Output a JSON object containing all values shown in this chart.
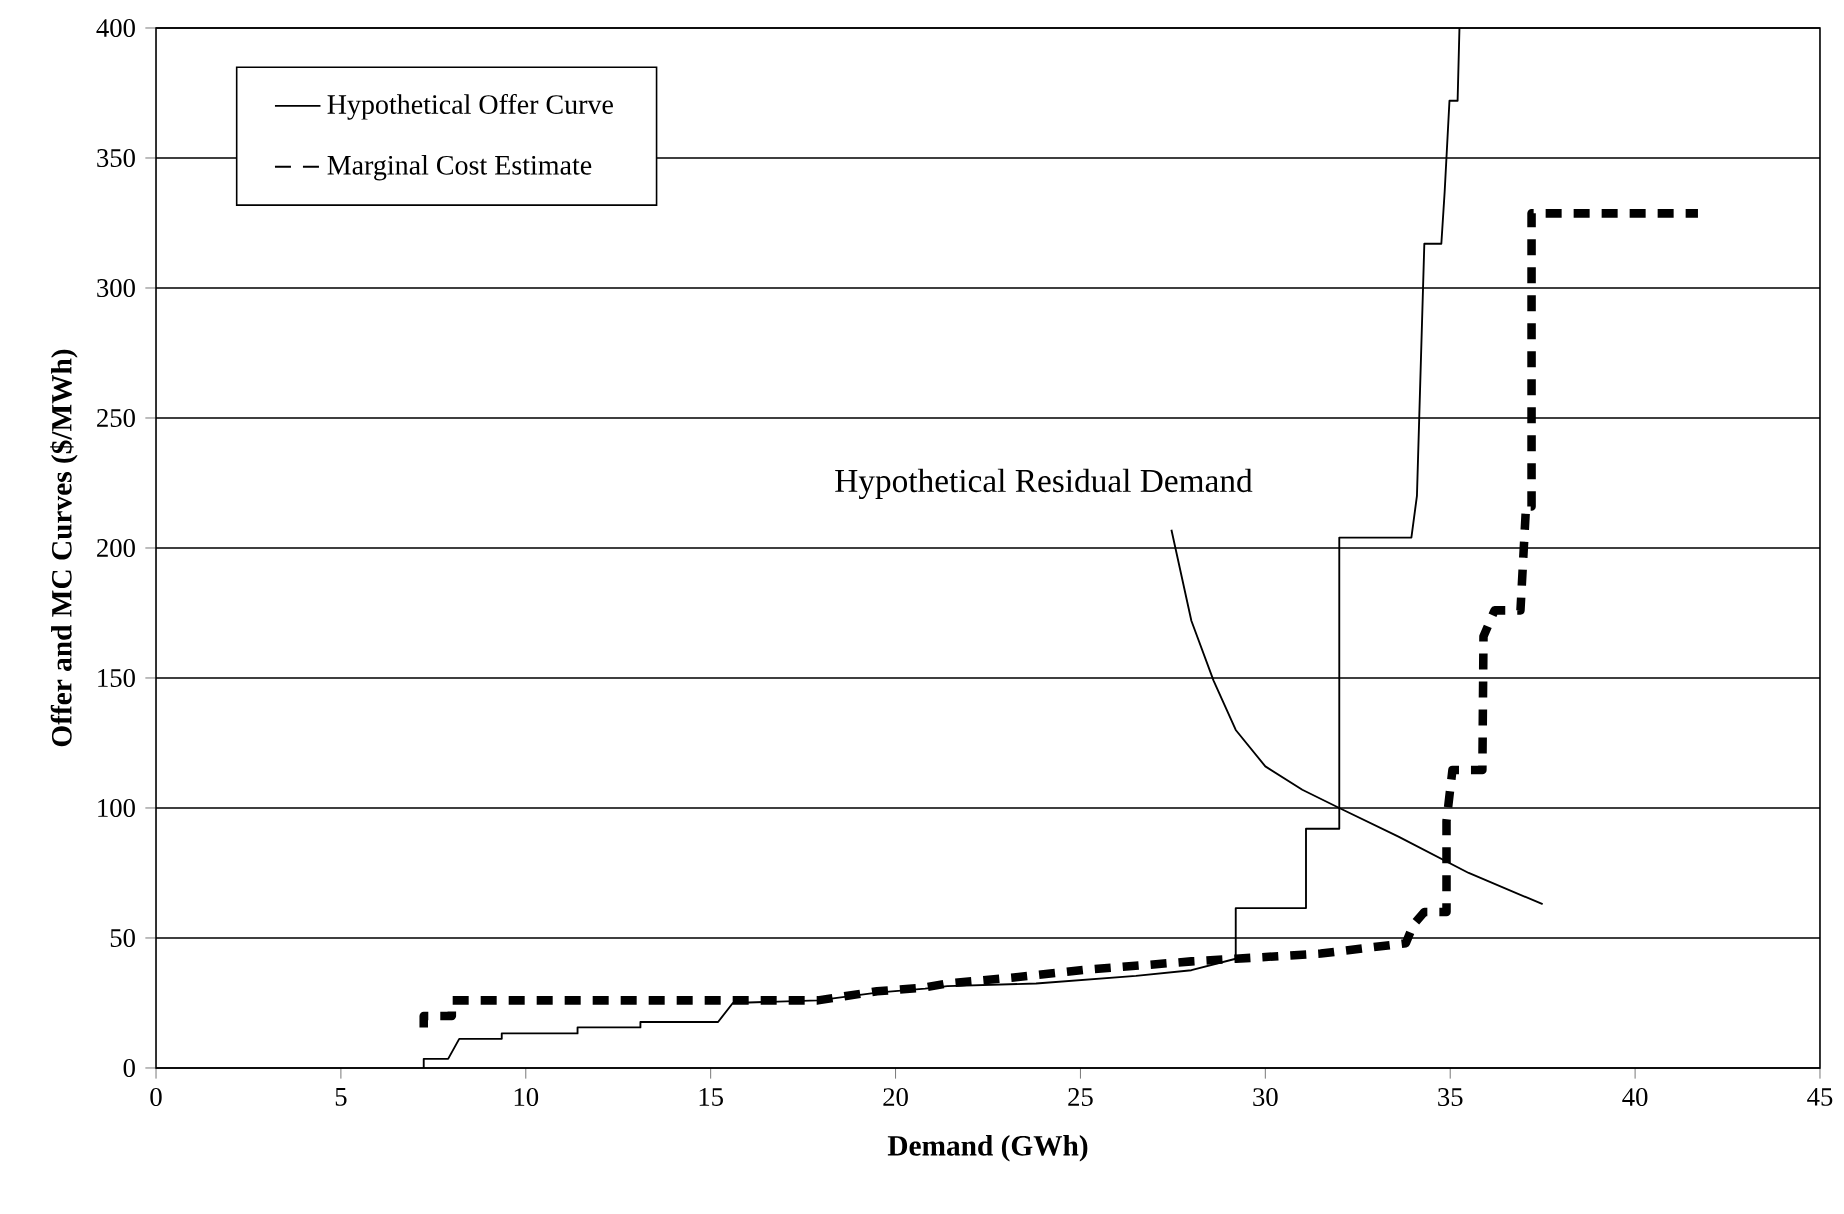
{
  "chart_data": {
    "type": "line",
    "xlabel": "Demand (GWh)",
    "ylabel": "Offer and MC Curves ($/MWh)",
    "xlim": [
      0,
      45
    ],
    "ylim": [
      0,
      400
    ],
    "xticks": [
      0,
      5,
      10,
      15,
      20,
      25,
      30,
      35,
      40,
      45
    ],
    "yticks": [
      0,
      50,
      100,
      150,
      200,
      250,
      300,
      350,
      400
    ],
    "grid": "y",
    "legend": "top left",
    "marker": "none",
    "series": [
      {
        "name": "Hypothetical Offer Curve",
        "color": "#000000",
        "line_style": "solid",
        "x": [
          7.24,
          7.24,
          7.9,
          8.2,
          9.35,
          9.35,
          11.4,
          11.4,
          13.1,
          13.1,
          15.2,
          15.6,
          17.9,
          19.5,
          20.8,
          21.4,
          23.8,
          26.5,
          28,
          29.2,
          29.2,
          31.1,
          31.1,
          32.0,
          32.0,
          33.95,
          34.1,
          34.3,
          34.76,
          34.85,
          34.98,
          35.2,
          35.25
        ],
        "values": [
          0,
          3.5,
          3.5,
          11.2,
          11.2,
          13.3,
          13.3,
          15.6,
          15.6,
          17.7,
          17.7,
          25,
          26,
          29,
          30.5,
          31.5,
          32.5,
          35.4,
          37.6,
          42,
          61.5,
          61.5,
          92,
          92,
          204,
          204,
          220,
          317,
          317,
          337,
          372,
          372,
          400
        ]
      },
      {
        "name": "Marginal Cost Estimate",
        "color": "#000000",
        "line_style": "dashed",
        "x": [
          7.24,
          7.24,
          8.0,
          8.0,
          17.9,
          19.5,
          20.8,
          21.4,
          23.2,
          25.1,
          28,
          29.2,
          31.5,
          33.8,
          34.0,
          34.3,
          34.9,
          34.9,
          35.06,
          35.87,
          35.9,
          36.2,
          36.9,
          37.05,
          37.2,
          37.2,
          41.7
        ],
        "values": [
          15.6,
          20,
          20,
          26,
          26,
          29.5,
          31,
          32.5,
          34.8,
          37.7,
          41,
          42,
          44,
          48,
          55,
          60,
          60,
          95,
          114.6,
          114.6,
          166,
          176,
          176,
          216,
          216,
          328.7,
          328.7
        ]
      },
      {
        "name": "Hypothetical Residual Demand",
        "color": "#000000",
        "line_style": "solid",
        "x": [
          27.46,
          28.0,
          28.6,
          29.2,
          30.0,
          31.0,
          32.0,
          33.6,
          35.5,
          37.5
        ],
        "values": [
          207,
          172,
          149,
          130,
          116,
          107,
          100,
          89,
          75,
          63
        ]
      }
    ]
  }
}
